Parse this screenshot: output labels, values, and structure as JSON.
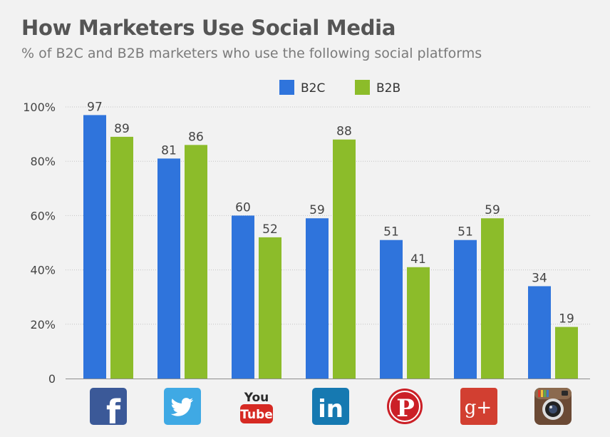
{
  "header": {
    "title": "How Marketers Use Social Media",
    "subtitle": "% of B2C and B2B marketers who use the following social platforms"
  },
  "chart_data": {
    "type": "bar",
    "title": "How Marketers Use Social Media",
    "subtitle": "% of B2C and B2B marketers who use the following social platforms",
    "categories": [
      "facebook",
      "twitter",
      "youtube",
      "linkedin",
      "pinterest",
      "google-plus",
      "instagram"
    ],
    "series": [
      {
        "name": "B2C",
        "color": "#2f74dc",
        "values": [
          97,
          81,
          60,
          59,
          51,
          51,
          34
        ]
      },
      {
        "name": "B2B",
        "color": "#8cbc2a",
        "values": [
          89,
          86,
          52,
          88,
          41,
          59,
          19
        ]
      }
    ],
    "y_ticks": [
      {
        "value": 0,
        "label": "0"
      },
      {
        "value": 20,
        "label": "20%"
      },
      {
        "value": 40,
        "label": "40%"
      },
      {
        "value": 60,
        "label": "60%"
      },
      {
        "value": 80,
        "label": "80%"
      },
      {
        "value": 100,
        "label": "100%"
      }
    ],
    "ylim": [
      0,
      100
    ],
    "xlabel": "",
    "ylabel": "",
    "grid": true,
    "legend_position": "top"
  },
  "icons": [
    {
      "name": "facebook-icon",
      "text": "f"
    },
    {
      "name": "twitter-icon",
      "text": ""
    },
    {
      "name": "youtube-icon",
      "text": "You Tube"
    },
    {
      "name": "linkedin-icon",
      "text": "in"
    },
    {
      "name": "pinterest-icon",
      "text": "P"
    },
    {
      "name": "google-plus-icon",
      "text": "g+"
    },
    {
      "name": "instagram-icon",
      "text": ""
    }
  ]
}
